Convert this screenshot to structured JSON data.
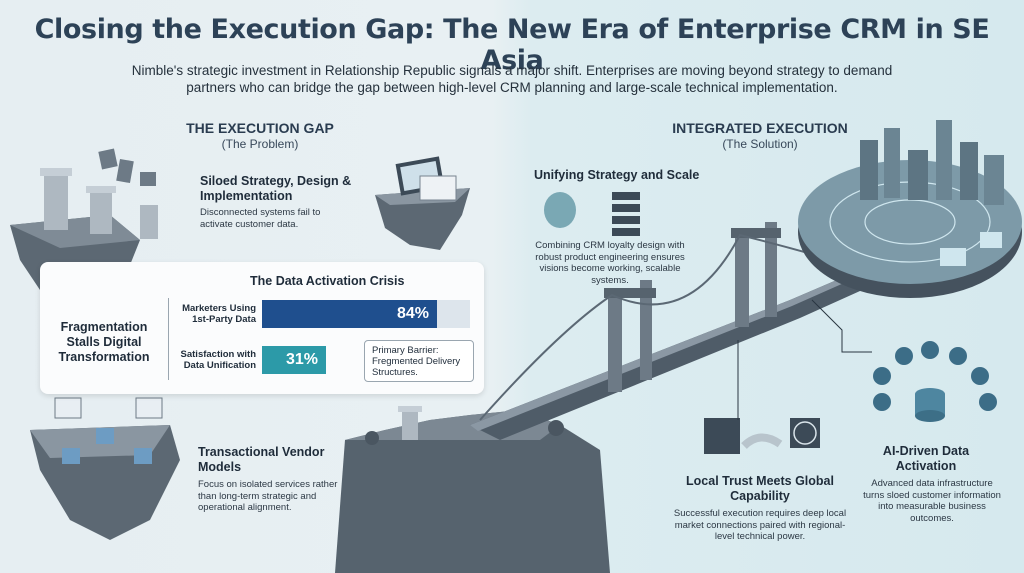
{
  "title": "Closing the Execution Gap: The New Era of Enterprise CRM in SE Asia",
  "subtitle": "Nimble's strategic investment in Relationship Republic signals a major shift. Enterprises are moving beyond strategy to demand partners who can bridge the gap between high-level CRM planning and large-scale technical implementation.",
  "left": {
    "heading": "THE EXECUTION GAP",
    "subheading": "(The Problem)",
    "siloed": {
      "title": "Siloed Strategy, Design & Implementation",
      "text": "Disconnected systems fail to activate customer data."
    },
    "fragmentation": "Fragmentation Stalls Digital Transformation",
    "crisis": {
      "title": "The Data Activation Crisis",
      "bars": [
        {
          "label": "Marketers Using 1st-Party Data",
          "value": 84,
          "display": "84%",
          "color": "#1f4f8e"
        },
        {
          "label": "Satisfaction with Data Unification",
          "value": 31,
          "display": "31%",
          "color": "#2c9aa8"
        }
      ],
      "note": "Primary Barrier: Fregmented Delivery Structures."
    },
    "transactional": {
      "title": "Transactional Vendor Models",
      "text": "Focus on isolated services rather than long-term strategic and operational alignment."
    }
  },
  "right": {
    "heading": "INTEGRATED EXECUTION",
    "subheading": "(The Solution)",
    "unifying": {
      "title": "Unifying Strategy and Scale",
      "text": "Combining CRM loyalty design with robust product engineering ensures visions become working, scalable systems."
    },
    "local": {
      "title": "Local Trust Meets Global Capability",
      "text": "Successful execution requires deep local market connections paired with regional-level technical power."
    },
    "ai": {
      "title": "AI-Driven Data Activation",
      "text": "Advanced data infrastructure turns sloed customer information into measurable business outcomes."
    }
  },
  "colors": {
    "title": "#2d4257",
    "bar_primary": "#1f4f8e",
    "bar_secondary": "#2c9aa8",
    "rock": "#56636e"
  }
}
